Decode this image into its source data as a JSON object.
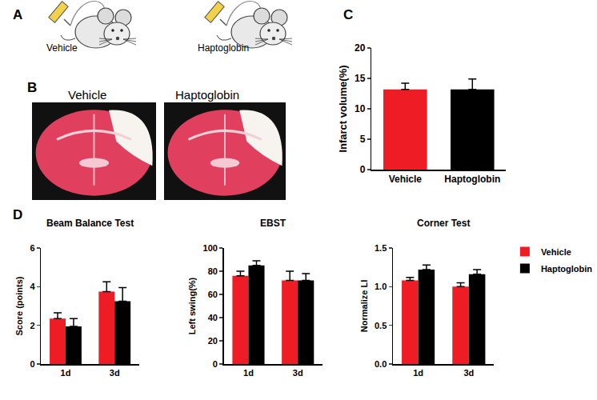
{
  "panel_labels": [
    "A",
    "B",
    "C",
    "D"
  ],
  "panel_a": {
    "labels": [
      "Vehicle",
      "Haptoglobin"
    ]
  },
  "panel_b": {
    "labels": [
      "Vehicle",
      "Haptoglobin"
    ]
  },
  "chart_data": [
    {
      "type": "bar",
      "y_label": "Infarct volume(%)",
      "categories": [
        "Vehicle",
        "Haptoglobin"
      ],
      "values": [
        13.2,
        13.2
      ],
      "errors": [
        1.0,
        1.7
      ],
      "colors": [
        "#ee1c25",
        "#000000"
      ],
      "ylim": [
        0,
        20
      ],
      "yticks": [
        0,
        5,
        10,
        15,
        20
      ]
    },
    {
      "type": "bar",
      "title": "Beam Balance Test",
      "y_label": "Score (points)",
      "categories": [
        "1d",
        "3d"
      ],
      "series": [
        {
          "name": "Vehicle",
          "color": "#ee1c25",
          "values": [
            2.35,
            3.75
          ],
          "errors": [
            0.3,
            0.5
          ]
        },
        {
          "name": "Haptoglobin",
          "color": "#000000",
          "values": [
            1.95,
            3.25
          ],
          "errors": [
            0.4,
            0.7
          ]
        }
      ],
      "ylim": [
        0,
        6
      ],
      "yticks": [
        0,
        2,
        4,
        6
      ]
    },
    {
      "type": "bar",
      "title": "EBST",
      "y_label": "Left swing(%)",
      "categories": [
        "1d",
        "3d"
      ],
      "series": [
        {
          "name": "Vehicle",
          "color": "#ee1c25",
          "values": [
            76,
            72
          ],
          "errors": [
            4,
            8
          ]
        },
        {
          "name": "Haptoglobin",
          "color": "#000000",
          "values": [
            85,
            72
          ],
          "errors": [
            4,
            6
          ]
        }
      ],
      "ylim": [
        0,
        100
      ],
      "yticks": [
        0,
        20,
        40,
        60,
        80,
        100
      ]
    },
    {
      "type": "bar",
      "title": "Corner Test",
      "y_label": "Normalize LI",
      "categories": [
        "1d",
        "3d"
      ],
      "series": [
        {
          "name": "Vehicle",
          "color": "#ee1c25",
          "values": [
            1.08,
            1.0
          ],
          "errors": [
            0.04,
            0.05
          ]
        },
        {
          "name": "Haptoglobin",
          "color": "#000000",
          "values": [
            1.22,
            1.16
          ],
          "errors": [
            0.06,
            0.06
          ]
        }
      ],
      "ylim": [
        0,
        1.5
      ],
      "yticks": [
        {
          "value": 0,
          "label": "0.0"
        },
        {
          "value": 0.5,
          "label": "0.5"
        },
        {
          "value": 1,
          "label": "1.0"
        },
        {
          "value": 1.5,
          "label": "1.5"
        }
      ],
      "legend": "right"
    }
  ]
}
